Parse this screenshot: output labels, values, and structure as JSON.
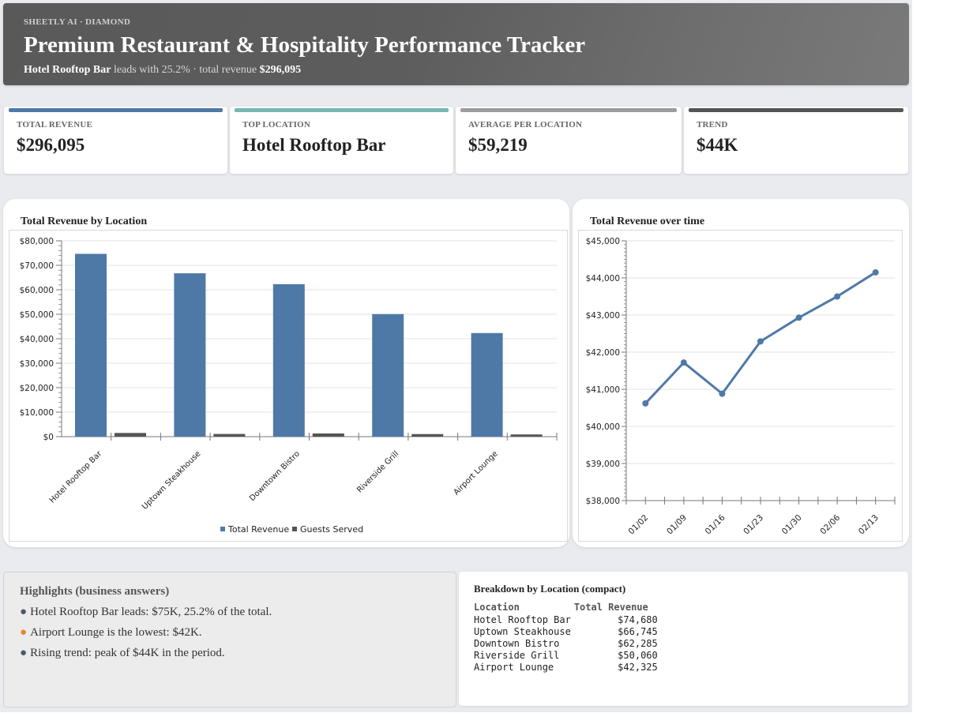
{
  "header": {
    "eyebrow": "SHEETLY AI · DIAMOND",
    "title": "Premium Restaurant & Hospitality Performance Tracker",
    "subtitle_lead": "Hotel Rooftop Bar",
    "subtitle_mid": " leads with 25.2% · total revenue ",
    "subtitle_total": "$296,095"
  },
  "kpis": [
    {
      "label": "TOTAL REVENUE",
      "value": "$296,095",
      "color": "#4e79a7"
    },
    {
      "label": "TOP LOCATION",
      "value": "Hotel Rooftop Bar",
      "color": "#76b7b2"
    },
    {
      "label": "AVERAGE PER LOCATION",
      "value": "$59,219",
      "color": "#9c9c9c"
    },
    {
      "label": "TREND",
      "value": "$44K",
      "color": "#555555"
    }
  ],
  "chart_data": [
    {
      "type": "bar",
      "title": "Total Revenue by Location",
      "categories": [
        "Hotel Rooftop Bar",
        "Uptown Steakhouse",
        "Downtown Bistro",
        "Riverside Grill",
        "Airport Lounge"
      ],
      "series": [
        {
          "name": "Total Revenue",
          "values": [
            74680,
            66745,
            62285,
            50060,
            42325
          ],
          "color": "#4e79a7"
        },
        {
          "name": "Guests Served",
          "values": [
            1500,
            1100,
            1300,
            1050,
            900
          ],
          "color": "#555555"
        }
      ],
      "yticks": [
        "$0",
        "$10,000",
        "$20,000",
        "$30,000",
        "$40,000",
        "$50,000",
        "$60,000",
        "$70,000",
        "$80,000"
      ],
      "ylim": [
        0,
        80000
      ],
      "legend": "bottom",
      "grid": true
    },
    {
      "type": "line",
      "title": "Total Revenue over time",
      "x": [
        "01/02",
        "01/09",
        "01/16",
        "01/23",
        "01/30",
        "02/06",
        "02/13"
      ],
      "series": [
        {
          "values": [
            40620,
            41720,
            40880,
            42290,
            42930,
            43500,
            44150
          ],
          "color": "#4e79a7"
        }
      ],
      "yticks": [
        "$38,000",
        "$39,000",
        "$40,000",
        "$41,000",
        "$42,000",
        "$43,000",
        "$44,000",
        "$45,000"
      ],
      "ylim": [
        38000,
        45000
      ],
      "grid": true
    }
  ],
  "highlights": {
    "title": "Highlights (business answers)",
    "items": [
      {
        "text": "Hotel Rooftop Bar leads: $75K, 25.2% of the total.",
        "dot_color": "#4a5a6a"
      },
      {
        "text": "Airport Lounge is the lowest: $42K.",
        "dot_color": "#e08a2a"
      },
      {
        "text": "Rising trend: peak of $44K in the period.",
        "dot_color": "#4a5a6a"
      }
    ]
  },
  "breakdown": {
    "title": "Breakdown by Location (compact)",
    "col_location": "Location",
    "col_revenue": "Total Revenue",
    "rows": [
      {
        "location": "Hotel Rooftop Bar",
        "revenue": "$74,680"
      },
      {
        "location": "Uptown Steakhouse",
        "revenue": "$66,745"
      },
      {
        "location": "Downtown Bistro",
        "revenue": "$62,285"
      },
      {
        "location": "Riverside Grill",
        "revenue": "$50,060"
      },
      {
        "location": "Airport Lounge",
        "revenue": "$42,325"
      }
    ]
  }
}
